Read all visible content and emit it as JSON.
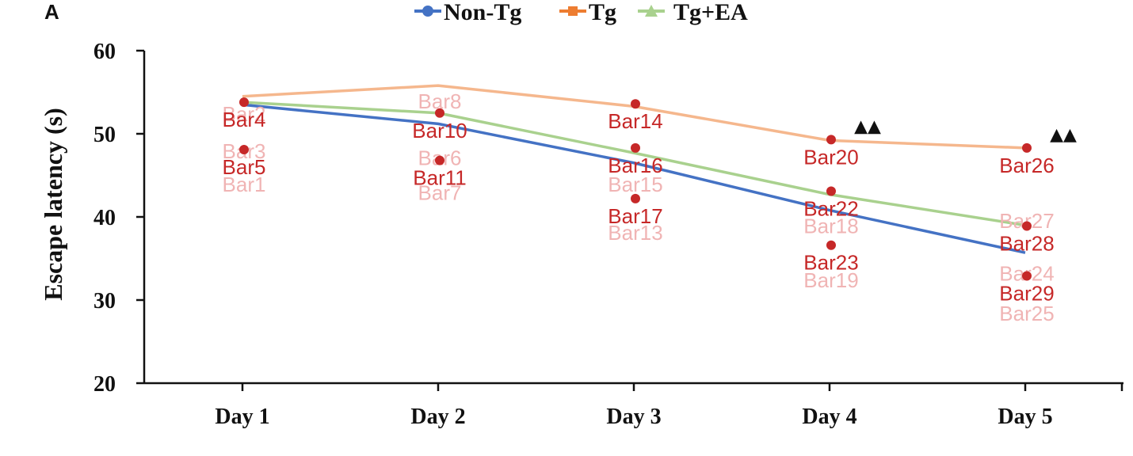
{
  "panel_letter": "A",
  "chart_data": {
    "type": "line",
    "categories": [
      "Day 1",
      "Day 2",
      "Day 3",
      "Day 4",
      "Day 5"
    ],
    "ylabel": "Escape latency (s)",
    "xlabel": "",
    "ylim": [
      20,
      60
    ],
    "yticks": [
      20,
      30,
      40,
      50,
      60
    ],
    "legend_position": "top",
    "series": [
      {
        "name": "Non-Tg",
        "color": "#4472c4",
        "marker": "circle",
        "values": [
          53.5,
          51.2,
          46.5,
          40.8,
          35.7
        ]
      },
      {
        "name": "Tg",
        "color": "#ed7d31",
        "marker": "square",
        "values": [
          54.5,
          55.8,
          53.3,
          49.2,
          48.3
        ]
      },
      {
        "name": "Tg+EA",
        "color": "#a9d18e",
        "marker": "triangle",
        "values": [
          53.8,
          52.5,
          47.7,
          42.7,
          39.0
        ]
      }
    ],
    "bar_points": [
      {
        "label": "Bar2",
        "x": "Day 1",
        "y": 54.5,
        "faint": true
      },
      {
        "label": "Bar4",
        "x": "Day 1",
        "y": 53.8,
        "faint": false
      },
      {
        "label": "Bar3",
        "x": "Day 1",
        "y": 50.0,
        "faint": true
      },
      {
        "label": "Bar5",
        "x": "Day 1",
        "y": 48.1,
        "faint": false
      },
      {
        "label": "Bar1",
        "x": "Day 1",
        "y": 46.0,
        "faint": true
      },
      {
        "label": "Bar8",
        "x": "Day 2",
        "y": 56.0,
        "faint": true
      },
      {
        "label": "Bar10",
        "x": "Day 2",
        "y": 52.5,
        "faint": false
      },
      {
        "label": "Bar6",
        "x": "Day 2",
        "y": 49.2,
        "faint": true
      },
      {
        "label": "Bar11",
        "x": "Day 2",
        "y": 46.8,
        "faint": false
      },
      {
        "label": "Bar7",
        "x": "Day 2",
        "y": 45.0,
        "faint": true
      },
      {
        "label": "Bar14",
        "x": "Day 3",
        "y": 53.6,
        "faint": false
      },
      {
        "label": "Bar16",
        "x": "Day 3",
        "y": 48.3,
        "faint": false
      },
      {
        "label": "Bar15",
        "x": "Day 3",
        "y": 46.0,
        "faint": true
      },
      {
        "label": "Bar17",
        "x": "Day 3",
        "y": 42.2,
        "faint": false
      },
      {
        "label": "Bar13",
        "x": "Day 3",
        "y": 40.2,
        "faint": true
      },
      {
        "label": "Bar20",
        "x": "Day 4",
        "y": 49.3,
        "faint": false
      },
      {
        "label": "Bar22",
        "x": "Day 4",
        "y": 43.1,
        "faint": false
      },
      {
        "label": "Bar18",
        "x": "Day 4",
        "y": 41.0,
        "faint": true
      },
      {
        "label": "Bar23",
        "x": "Day 4",
        "y": 36.6,
        "faint": false
      },
      {
        "label": "Bar19",
        "x": "Day 4",
        "y": 34.5,
        "faint": true
      },
      {
        "label": "Bar26",
        "x": "Day 5",
        "y": 48.3,
        "faint": false
      },
      {
        "label": "Bar27",
        "x": "Day 5",
        "y": 41.6,
        "faint": true
      },
      {
        "label": "Bar28",
        "x": "Day 5",
        "y": 38.9,
        "faint": false
      },
      {
        "label": "Bar24",
        "x": "Day 5",
        "y": 35.3,
        "faint": true
      },
      {
        "label": "Bar29",
        "x": "Day 5",
        "y": 32.9,
        "faint": false
      },
      {
        "label": "Bar25",
        "x": "Day 5",
        "y": 30.5,
        "faint": true
      }
    ],
    "annotations": [
      {
        "text": "▲▲",
        "x": "Day 4",
        "y": 49.3
      },
      {
        "text": "▲▲",
        "x": "Day 5",
        "y": 48.3
      }
    ]
  }
}
